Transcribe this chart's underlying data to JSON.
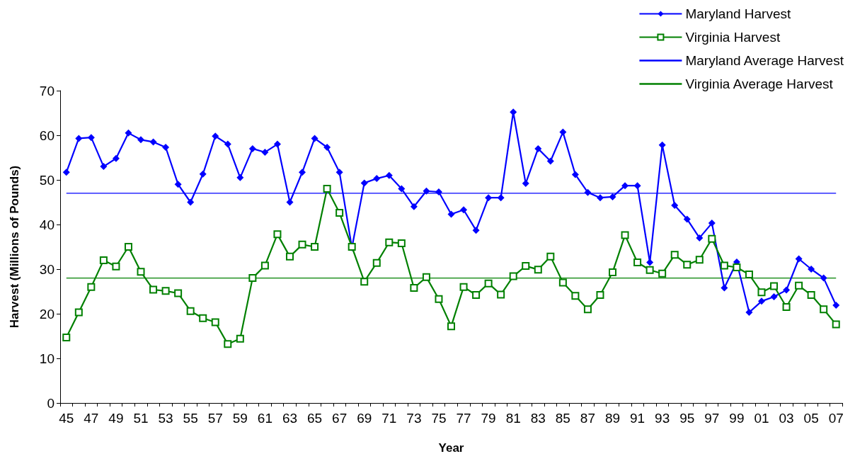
{
  "chart_data": {
    "type": "line",
    "xlabel": "Year",
    "ylabel": "Harvest (Millions of Pounds)",
    "categories": [
      "45",
      null,
      "47",
      null,
      "49",
      null,
      "51",
      null,
      "53",
      null,
      "55",
      null,
      "57",
      null,
      "59",
      null,
      "61",
      null,
      "63",
      null,
      "65",
      null,
      "67",
      null,
      "69",
      null,
      "71",
      null,
      "73",
      null,
      "75",
      null,
      "77",
      null,
      "79",
      null,
      "81",
      null,
      "83",
      null,
      "85",
      null,
      "87",
      null,
      "89",
      null,
      "91",
      null,
      "93",
      null,
      "95",
      null,
      "97",
      null,
      "99",
      null,
      "01",
      null,
      "03",
      null,
      "05",
      null,
      "07"
    ],
    "series": [
      {
        "name": "Maryland Harvest",
        "color": "#0000ff",
        "marker": "diamond",
        "values": [
          51.7,
          59.3,
          59.5,
          53,
          54.8,
          60.5,
          59,
          58.5,
          57.3,
          49,
          45,
          51.3,
          59.8,
          58,
          50.5,
          57,
          56.2,
          58,
          45,
          51.7,
          59.3,
          57.3,
          51.7,
          34.8,
          49.3,
          50.3,
          51,
          48,
          44,
          47.5,
          47.3,
          42.3,
          43.3,
          38.7,
          46,
          46,
          65.2,
          49.2,
          57,
          54.2,
          60.7,
          51.2,
          47.2,
          46,
          46.2,
          48.7,
          48.7,
          31.5,
          57.8,
          44.3,
          41.2,
          37,
          40.3,
          25.8,
          31.6,
          20.3,
          22.8,
          23.8,
          25.3,
          32.3,
          30,
          28,
          21.9
        ]
      },
      {
        "name": "Virginia Harvest",
        "color": "#008000",
        "marker": "square",
        "values": [
          14.7,
          20.3,
          26,
          32,
          30.6,
          35,
          29.4,
          25.4,
          25.1,
          24.6,
          20.6,
          19,
          18.1,
          13.2,
          14.4,
          28,
          30.8,
          37.8,
          32.8,
          35.5,
          35,
          48,
          42.6,
          35,
          27.2,
          31.4,
          36,
          35.8,
          25.8,
          28.2,
          23.3,
          17.2,
          26,
          24.2,
          26.8,
          24.3,
          28.4,
          30.7,
          29.9,
          32.8,
          27,
          24,
          21,
          24.2,
          29.3,
          37.6,
          31.5,
          29.8,
          29,
          33.2,
          31,
          32.1,
          36.8,
          30.8,
          30.4,
          28.8,
          24.8,
          26.2,
          21.5,
          26.3,
          24.2,
          21,
          17.6
        ]
      },
      {
        "name": "Maryland Average Harvest",
        "color": "#0000ff",
        "marker": "none",
        "values": [
          47,
          47,
          47,
          47,
          47,
          47,
          47,
          47,
          47,
          47,
          47,
          47,
          47,
          47,
          47,
          47,
          47,
          47,
          47,
          47,
          47,
          47,
          47,
          47,
          47,
          47,
          47,
          47,
          47,
          47,
          47,
          47,
          47,
          47,
          47,
          47,
          47,
          47,
          47,
          47,
          47,
          47,
          47,
          47,
          47,
          47,
          47,
          47,
          47,
          47,
          47,
          47,
          47,
          47,
          47,
          47,
          47,
          47,
          47,
          47,
          47,
          47,
          47
        ]
      },
      {
        "name": "Virginia Average Harvest",
        "color": "#008000",
        "marker": "none",
        "values": [
          28,
          28,
          28,
          28,
          28,
          28,
          28,
          28,
          28,
          28,
          28,
          28,
          28,
          28,
          28,
          28,
          28,
          28,
          28,
          28,
          28,
          28,
          28,
          28,
          28,
          28,
          28,
          28,
          28,
          28,
          28,
          28,
          28,
          28,
          28,
          28,
          28,
          28,
          28,
          28,
          28,
          28,
          28,
          28,
          28,
          28,
          28,
          28,
          28,
          28,
          28,
          28,
          28,
          28,
          28,
          28,
          28,
          28,
          28,
          28,
          28,
          28,
          28
        ]
      }
    ],
    "ylim": [
      0,
      70
    ],
    "yticks": [
      0,
      10,
      20,
      30,
      40,
      50,
      60,
      70
    ],
    "grid": false,
    "legend": "top right"
  }
}
